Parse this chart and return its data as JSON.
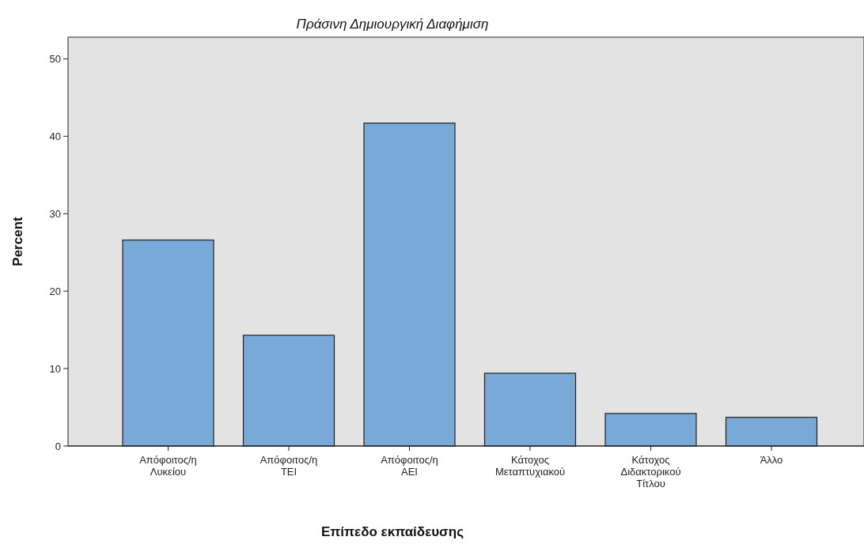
{
  "chart_data": {
    "type": "bar",
    "title": "Πράσινη Δημιουργική Διαφήμιση",
    "xlabel": "Επίπεδο εκπαίδευσης",
    "ylabel": "Percent",
    "categories": [
      "Απόφοιτος/η Λυκείου",
      "Απόφοιτος/η ΤΕΙ",
      "Απόφοιτος/η ΑΕΙ",
      "Κάτοχος Μεταπτυχιακού",
      "Κάτοχος Διδακτορικού Τίτλου",
      "Άλλο"
    ],
    "values": [
      26.6,
      14.3,
      41.7,
      9.4,
      4.2,
      3.7
    ],
    "color": "#79a9d6",
    "ylim": [
      0,
      52.8
    ],
    "yticks": [
      0,
      10,
      20,
      30,
      40,
      50
    ],
    "grid": false
  }
}
